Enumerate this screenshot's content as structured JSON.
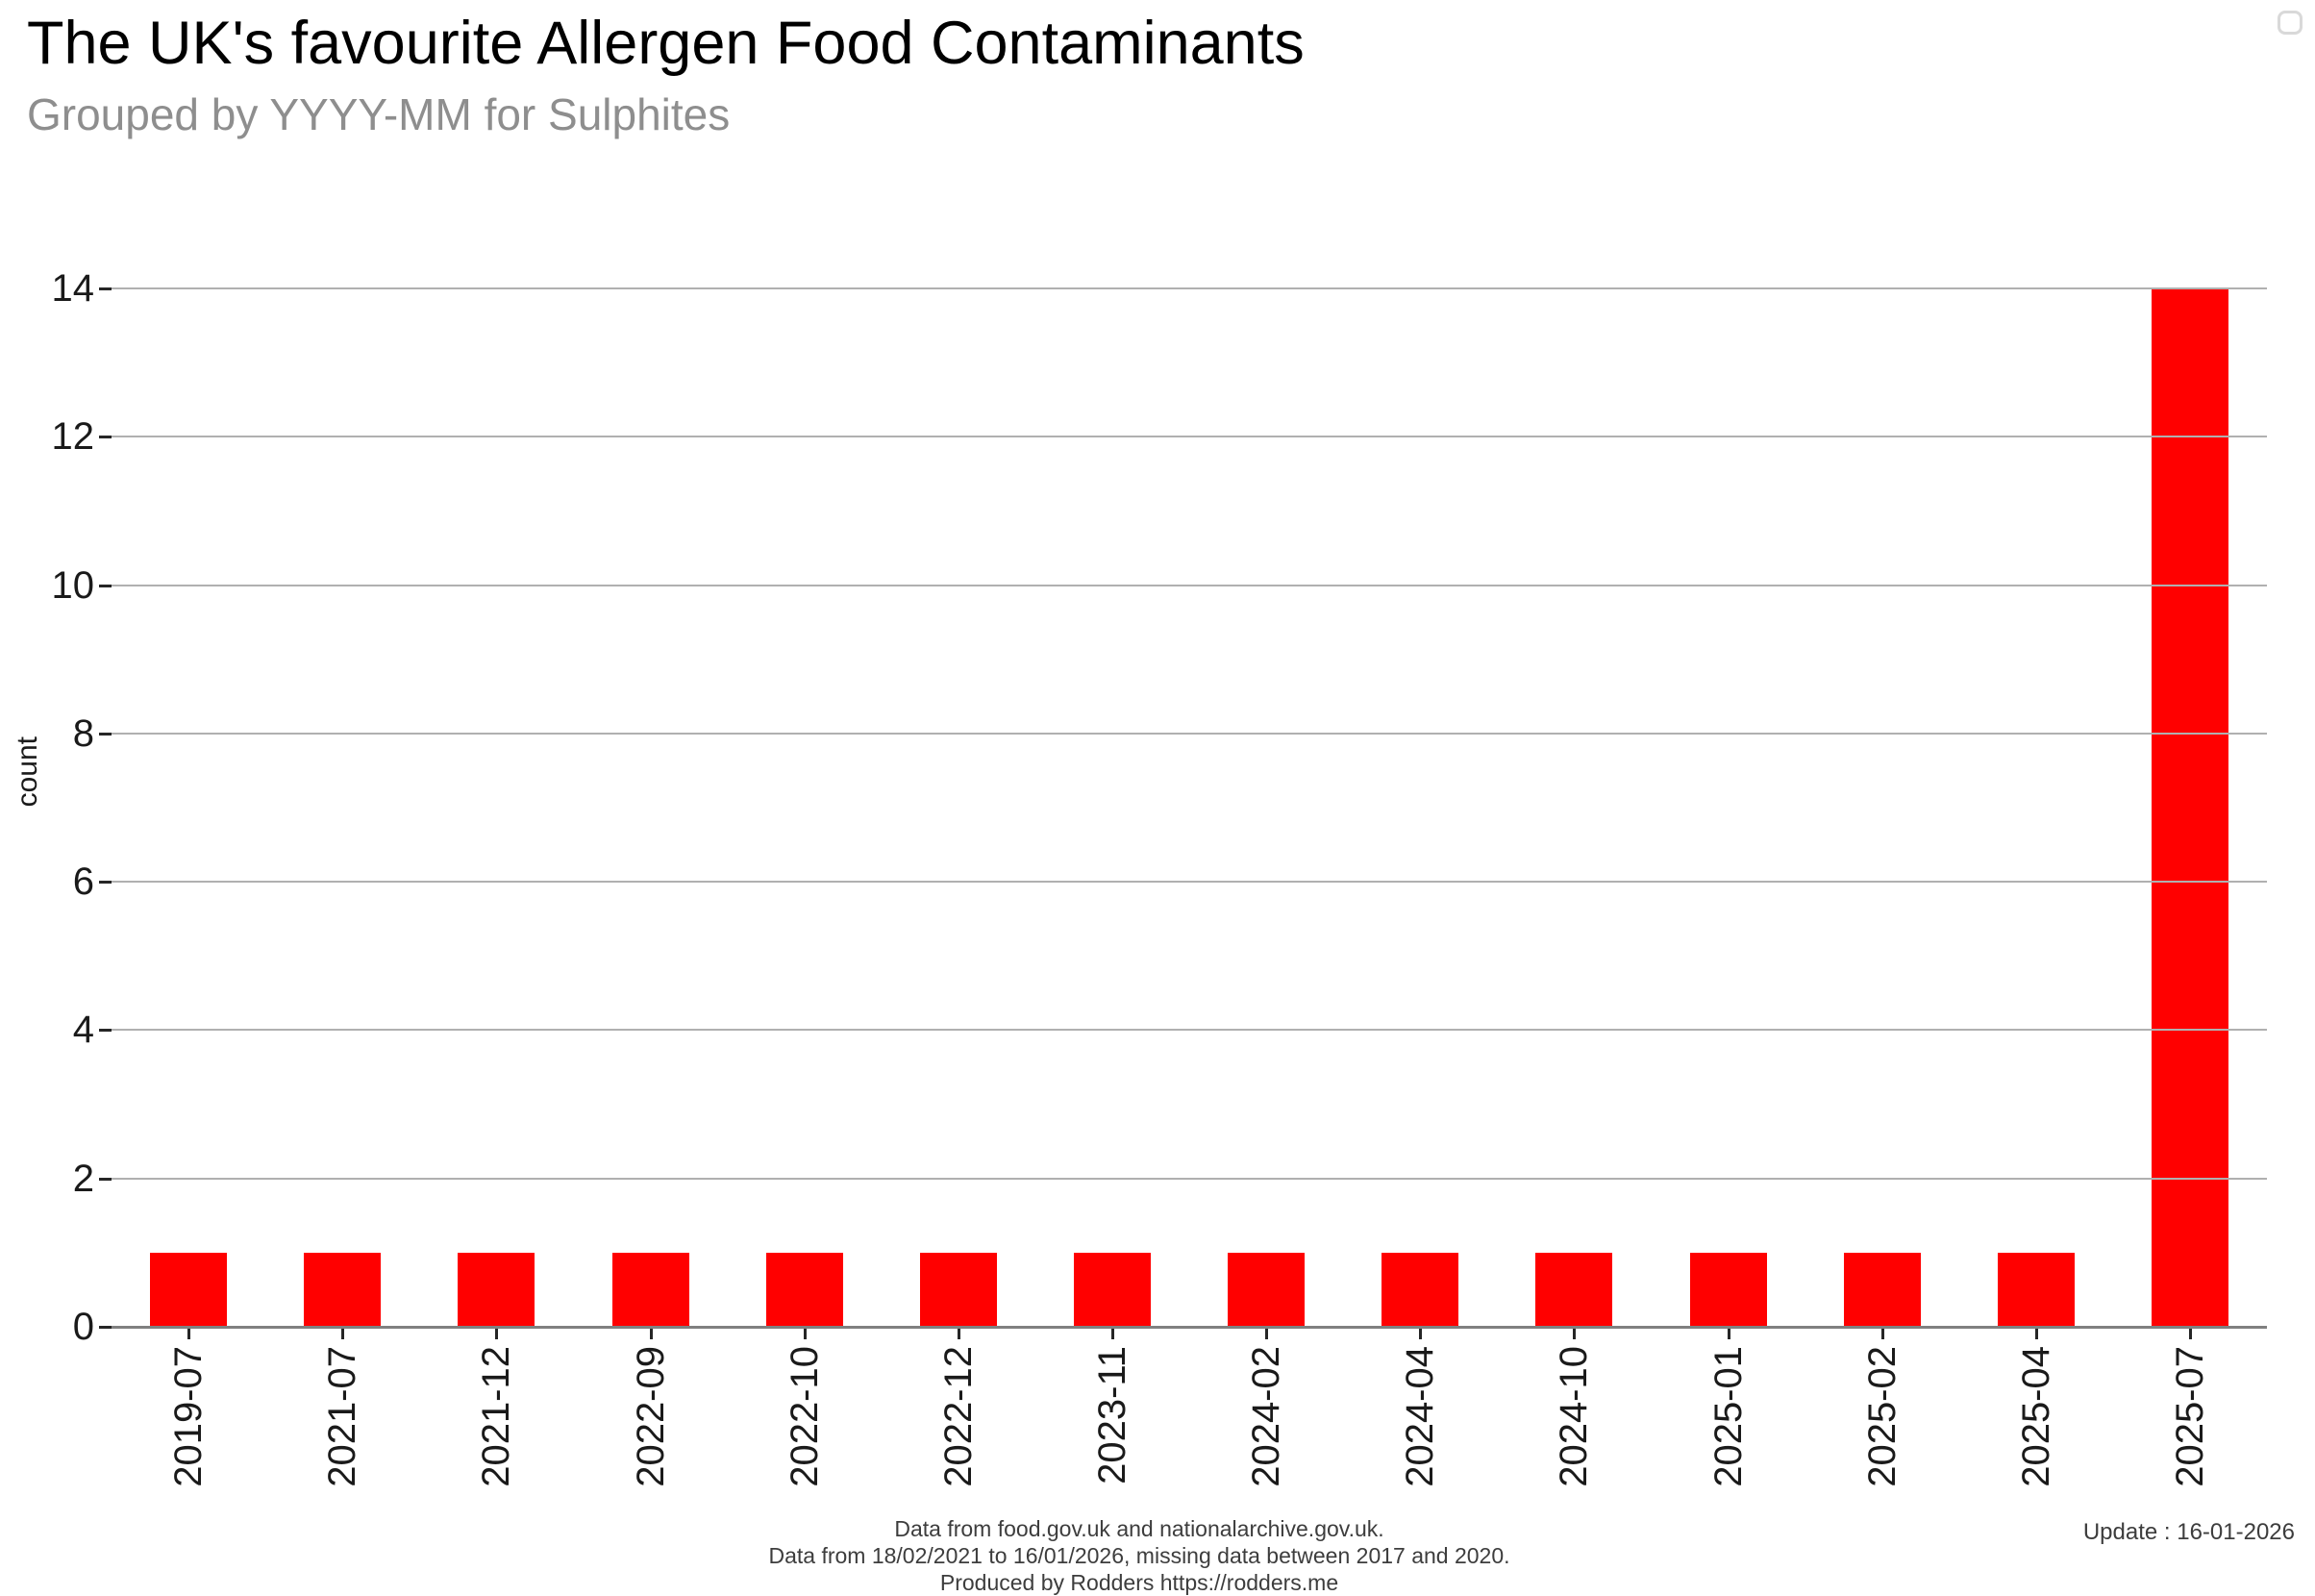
{
  "chart_data": {
    "type": "bar",
    "title": "The UK's favourite Allergen Food Contaminants",
    "subtitle": "Grouped by YYYY-MM for Sulphites",
    "categories": [
      "2019-07",
      "2021-07",
      "2021-12",
      "2022-09",
      "2022-10",
      "2022-12",
      "2023-11",
      "2024-02",
      "2024-04",
      "2024-10",
      "2025-01",
      "2025-02",
      "2025-04",
      "2025-07"
    ],
    "values": [
      1,
      1,
      1,
      1,
      1,
      1,
      1,
      1,
      1,
      1,
      1,
      1,
      1,
      14
    ],
    "xlabel": "",
    "ylabel": "count",
    "ylim": [
      0,
      14
    ],
    "yticks": [
      0,
      2,
      4,
      6,
      8,
      10,
      12,
      14
    ],
    "bar_color": "#ff0000",
    "grid": true,
    "grid_color": "#b0b0b0",
    "axis_color": "#808080",
    "legend_position": "top-right-empty"
  },
  "footer": {
    "line1": "Data from food.gov.uk and nationalarchive.gov.uk.",
    "line2": "Data from 18/02/2021 to 16/01/2026, missing data between 2017 and 2020.",
    "line3": "Produced by Rodders https://rodders.me",
    "update": "Update : 16-01-2026"
  }
}
